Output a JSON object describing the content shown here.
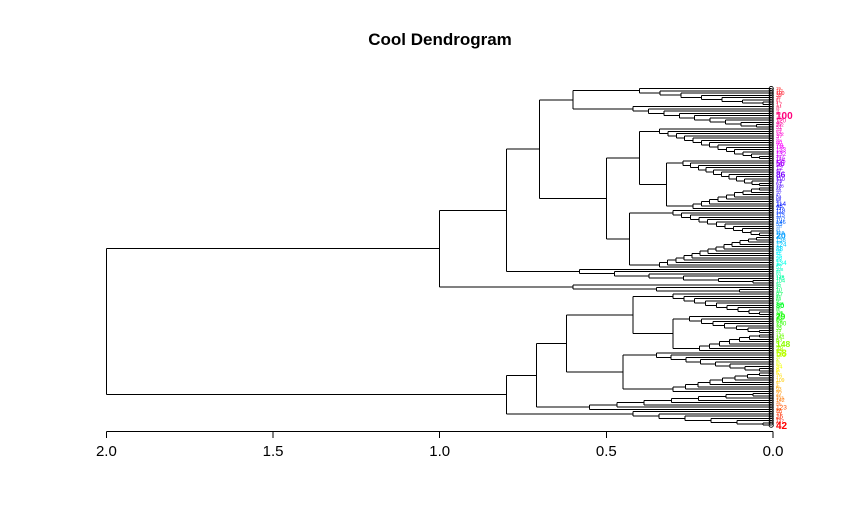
{
  "title": "Cool Dendrogram",
  "chart_data": {
    "type": "dendrogram",
    "title": "Cool Dendrogram",
    "orientation": "horizontal-leaves-right",
    "n_leaves": 150,
    "root_height": 2.0,
    "axis": {
      "position": "bottom",
      "ticks": [
        2.0,
        1.5,
        1.0,
        0.5,
        0.0
      ],
      "tick_labels": [
        "2.0",
        "1.5",
        "1.0",
        "0.5",
        "0.0"
      ],
      "range": [
        2.0,
        0.0
      ]
    },
    "leaf_marker": "black-open-circle",
    "labels": {
      "content": "sample index numbers (1-150), heavily overlapping",
      "palette": "rainbow",
      "hue_start_deg": 360,
      "hue_end_deg": 0,
      "notable_visible": [
        {
          "index": 12,
          "text": "100",
          "size": 10
        },
        {
          "index": 96,
          "text": "80",
          "size": 7.5
        },
        {
          "index": 149,
          "text": "42",
          "size": 10
        }
      ]
    },
    "line_color": "#000000",
    "background": "#FFFFFF",
    "tree": {
      "h": 2.0,
      "children": [
        {
          "h": 1.0,
          "children": [
            {
              "h": 0.8,
              "children": [
                {
                  "h": 0.7,
                  "children": [
                    {
                      "h": 0.6,
                      "children": [
                        {
                          "comb": {
                            "n": 8,
                            "h0": 0.4,
                            "h1": 0.03,
                            "leaf": "top"
                          }
                        },
                        {
                          "comb": {
                            "n": 10,
                            "h0": 0.42,
                            "h1": 0.05,
                            "leaf": "top"
                          }
                        }
                      ]
                    },
                    {
                      "h": 0.5,
                      "children": [
                        {
                          "h": 0.4,
                          "children": [
                            {
                              "comb": {
                                "n": 14,
                                "h0": 0.34,
                                "h1": 0.04,
                                "leaf": "top"
                              }
                            },
                            {
                              "h": 0.32,
                              "children": [
                                {
                                  "comb": {
                                    "n": 12,
                                    "h0": 0.27,
                                    "h1": 0.04,
                                    "leaf": "top"
                                  }
                                },
                                {
                                  "comb": {
                                    "n": 10,
                                    "h0": 0.24,
                                    "h1": 0.04,
                                    "leaf": "bottom"
                                  }
                                }
                              ]
                            }
                          ]
                        },
                        {
                          "h": 0.43,
                          "children": [
                            {
                              "comb": {
                                "n": 12,
                                "h0": 0.3,
                                "h1": 0.04,
                                "leaf": "top"
                              }
                            },
                            {
                              "comb": {
                                "n": 14,
                                "h0": 0.34,
                                "h1": 0.05,
                                "leaf": "bottom"
                              }
                            }
                          ]
                        }
                      ]
                    }
                  ]
                },
                {
                  "comb": {
                    "n": 7,
                    "h0": 0.58,
                    "h1": 0.06,
                    "leaf": "top"
                  }
                }
              ]
            },
            {
              "comb": {
                "n": 4,
                "h0": 0.6,
                "h1": 0.1,
                "leaf": "top"
              }
            }
          ]
        },
        {
          "h": 0.8,
          "children": [
            {
              "h": 0.71,
              "children": [
                {
                  "h": 0.62,
                  "children": [
                    {
                      "h": 0.42,
                      "children": [
                        {
                          "comb": {
                            "n": 10,
                            "h0": 0.3,
                            "h1": 0.04,
                            "leaf": "top"
                          }
                        },
                        {
                          "h": 0.3,
                          "children": [
                            {
                              "comb": {
                                "n": 8,
                                "h0": 0.25,
                                "h1": 0.04,
                                "leaf": "top"
                              }
                            },
                            {
                              "comb": {
                                "n": 8,
                                "h0": 0.22,
                                "h1": 0.04,
                                "leaf": "bottom"
                              }
                            }
                          ]
                        }
                      ]
                    },
                    {
                      "h": 0.45,
                      "children": [
                        {
                          "comb": {
                            "n": 9,
                            "h0": 0.35,
                            "h1": 0.04,
                            "leaf": "top"
                          }
                        },
                        {
                          "comb": {
                            "n": 9,
                            "h0": 0.3,
                            "h1": 0.04,
                            "leaf": "bottom"
                          }
                        }
                      ]
                    }
                  ]
                },
                {
                  "comb": {
                    "n": 8,
                    "h0": 0.55,
                    "h1": 0.06,
                    "leaf": "bottom"
                  }
                }
              ]
            },
            {
              "comb": {
                "n": 7,
                "h0": 0.42,
                "h1": 0.03,
                "leaf": "top"
              }
            }
          ]
        }
      ]
    }
  }
}
